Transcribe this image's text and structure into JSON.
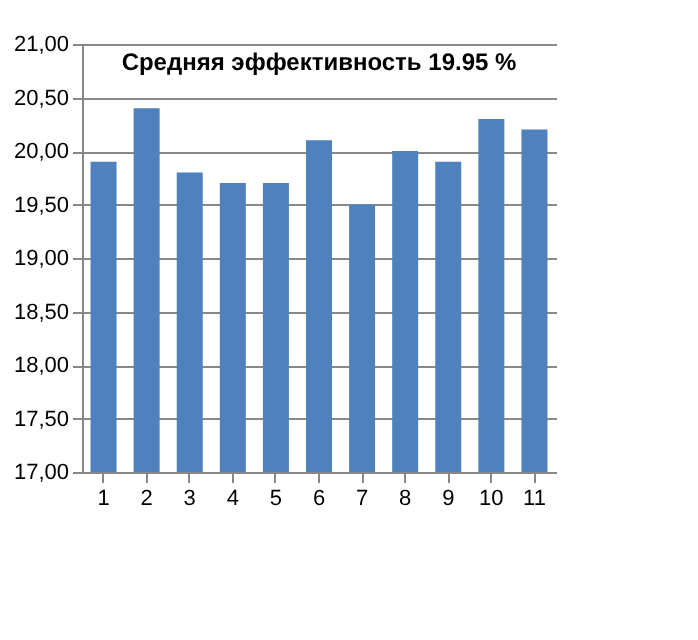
{
  "chart_data": {
    "type": "bar",
    "title": "Средняя эффективность 19.95 %",
    "categories": [
      "1",
      "2",
      "3",
      "4",
      "5",
      "6",
      "7",
      "8",
      "9",
      "10",
      "11"
    ],
    "values": [
      19.9,
      20.4,
      19.8,
      19.7,
      19.7,
      20.1,
      19.5,
      20.0,
      19.9,
      20.3,
      20.2
    ],
    "color": "#4f81bd",
    "ylim": [
      17,
      21
    ],
    "yticks": [
      {
        "value": 17,
        "label": "17,00"
      },
      {
        "value": 17.5,
        "label": "17,50"
      },
      {
        "value": 18,
        "label": "18,00"
      },
      {
        "value": 18.5,
        "label": "18,50"
      },
      {
        "value": 19,
        "label": "19,00"
      },
      {
        "value": 19.5,
        "label": "19,50"
      },
      {
        "value": 20,
        "label": "20,00"
      },
      {
        "value": 20.5,
        "label": "20,50"
      },
      {
        "value": 21,
        "label": "21,00"
      }
    ],
    "grid": "y"
  }
}
